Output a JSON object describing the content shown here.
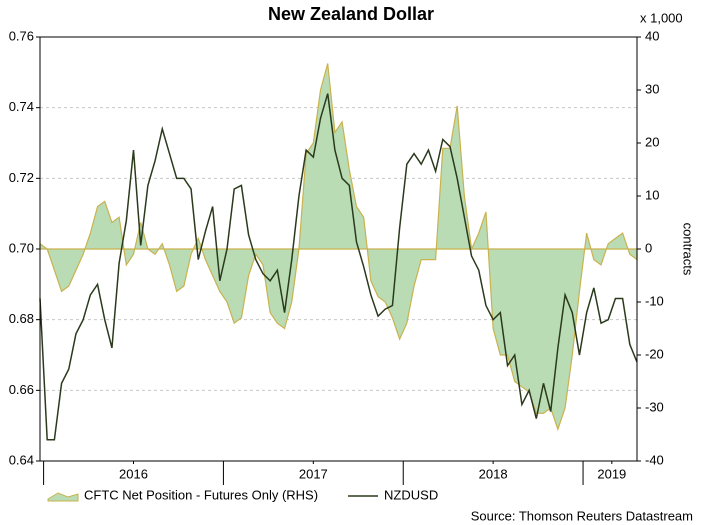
{
  "chart_data": {
    "type": "combo",
    "title": "New Zealand Dollar",
    "source": "Source: Thomson Reuters Datastream",
    "y2_label": "contracts",
    "y2_scale_label": "x 1,000",
    "legend": "bottom",
    "grid": true,
    "x": [
      2015.98,
      2016.02,
      2016.06,
      2016.1,
      2016.14,
      2016.18,
      2016.22,
      2016.26,
      2016.3,
      2016.34,
      2016.38,
      2016.42,
      2016.46,
      2016.5,
      2016.54,
      2016.58,
      2016.62,
      2016.66,
      2016.7,
      2016.74,
      2016.78,
      2016.82,
      2016.86,
      2016.9,
      2016.94,
      2016.98,
      2017.02,
      2017.06,
      2017.1,
      2017.14,
      2017.18,
      2017.22,
      2017.26,
      2017.3,
      2017.34,
      2017.38,
      2017.42,
      2017.46,
      2017.5,
      2017.54,
      2017.58,
      2017.62,
      2017.66,
      2017.7,
      2017.74,
      2017.78,
      2017.82,
      2017.86,
      2017.9,
      2017.94,
      2017.98,
      2018.02,
      2018.06,
      2018.1,
      2018.14,
      2018.18,
      2018.22,
      2018.26,
      2018.3,
      2018.34,
      2018.38,
      2018.42,
      2018.46,
      2018.5,
      2018.54,
      2018.58,
      2018.62,
      2018.66,
      2018.7,
      2018.74,
      2018.78,
      2018.82,
      2018.86,
      2018.9,
      2018.94,
      2018.98,
      2019.02,
      2019.06,
      2019.1,
      2019.14,
      2019.18,
      2019.22,
      2019.26,
      2019.3
    ],
    "series": [
      {
        "name": "CFTC Net Position - Futures Only (RHS)",
        "type": "area",
        "axis": "y2",
        "color": "#b9dcb5",
        "edge_color": "#c9b24e",
        "values": [
          1,
          0,
          -4,
          -8,
          -7,
          -4,
          -1,
          3,
          8,
          9,
          5,
          6,
          -3,
          -1,
          5,
          0,
          -1,
          1,
          -3,
          -8,
          -7,
          -1,
          2,
          -2,
          -5,
          -8,
          -10,
          -14,
          -13,
          -5,
          -1,
          -3,
          -12,
          -14,
          -15,
          -10,
          0,
          18,
          20,
          30,
          35,
          22,
          24,
          15,
          8,
          6,
          -6,
          -9,
          -10,
          -13,
          -17,
          -14,
          -7,
          -2,
          -2,
          -2,
          19,
          19,
          27,
          10,
          0,
          3,
          7,
          -15,
          -20,
          -20,
          -25,
          -26,
          -27,
          -31,
          -31,
          -30,
          -34,
          -30,
          -20,
          -8,
          3,
          -2,
          -3,
          1,
          2,
          3,
          -1,
          -2
        ]
      },
      {
        "name": "NZDUSD",
        "type": "line",
        "color": "#2b3a1c",
        "values": [
          0.686,
          0.646,
          0.646,
          0.662,
          0.666,
          0.676,
          0.68,
          0.687,
          0.69,
          0.68,
          0.672,
          0.696,
          0.708,
          0.728,
          0.701,
          0.718,
          0.725,
          0.734,
          0.727,
          0.72,
          0.72,
          0.717,
          0.697,
          0.705,
          0.712,
          0.691,
          0.7,
          0.717,
          0.718,
          0.704,
          0.697,
          0.693,
          0.691,
          0.694,
          0.682,
          0.697,
          0.715,
          0.728,
          0.726,
          0.737,
          0.744,
          0.728,
          0.72,
          0.718,
          0.702,
          0.695,
          0.687,
          0.681,
          0.683,
          0.684,
          0.706,
          0.724,
          0.727,
          0.724,
          0.728,
          0.722,
          0.731,
          0.729,
          0.72,
          0.709,
          0.698,
          0.694,
          0.684,
          0.68,
          0.682,
          0.667,
          0.67,
          0.656,
          0.66,
          0.652,
          0.662,
          0.654,
          0.672,
          0.687,
          0.682,
          0.67,
          0.682,
          0.689,
          0.679,
          0.68,
          0.686,
          0.686,
          0.673,
          0.668
        ]
      }
    ],
    "xlim": [
      2015.98,
      2019.3
    ],
    "xticks": [
      {
        "value": 2016.5,
        "label": "2016"
      },
      {
        "value": 2017.5,
        "label": "2017"
      },
      {
        "value": 2018.5,
        "label": "2018"
      },
      {
        "value": 2019.16,
        "label": "2019"
      }
    ],
    "ylim": [
      0.64,
      0.76
    ],
    "yticks": [
      0.64,
      0.66,
      0.68,
      {
        "value": 0.7,
        "label": "0.70"
      },
      0.72,
      0.74,
      0.76
    ],
    "y2lim": [
      -40,
      40
    ],
    "y2ticks": [
      -40,
      -30,
      -20,
      -10,
      0,
      10,
      20,
      30,
      40
    ]
  }
}
